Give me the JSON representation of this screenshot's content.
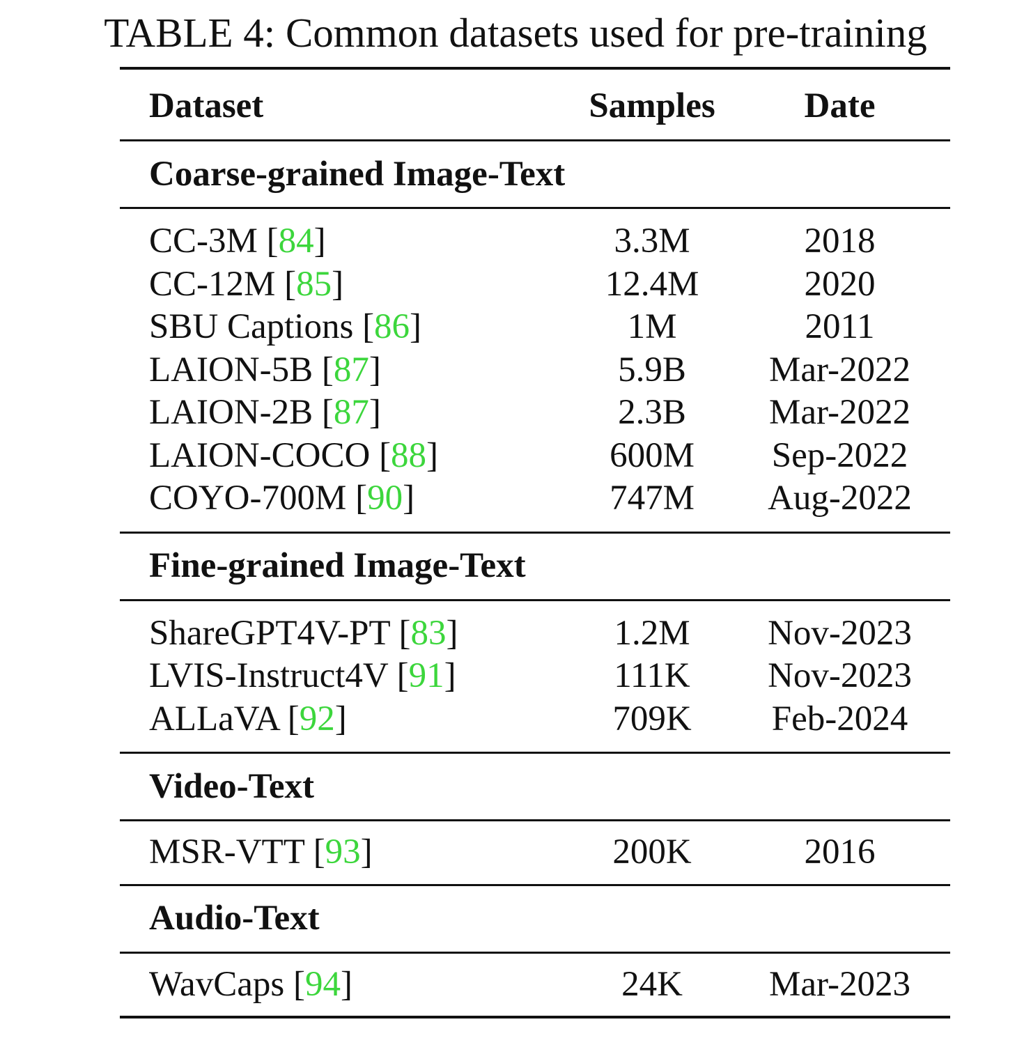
{
  "caption": "TABLE 4: Common datasets used for pre-training",
  "headers": {
    "dataset": "Dataset",
    "samples": "Samples",
    "date": "Date"
  },
  "colors": {
    "citation": "#3cd63c",
    "text": "#111111",
    "rule": "#111111"
  },
  "sections": [
    {
      "title": "Coarse-grained Image-Text",
      "rows": [
        {
          "name": "CC-3M",
          "ref": "84",
          "samples": "3.3M",
          "date": "2018"
        },
        {
          "name": "CC-12M",
          "ref": "85",
          "samples": "12.4M",
          "date": "2020"
        },
        {
          "name": "SBU Captions",
          "ref": "86",
          "samples": "1M",
          "date": "2011"
        },
        {
          "name": "LAION-5B",
          "ref": "87",
          "samples": "5.9B",
          "date": "Mar-2022"
        },
        {
          "name": "LAION-2B",
          "ref": "87",
          "samples": "2.3B",
          "date": "Mar-2022"
        },
        {
          "name": "LAION-COCO",
          "ref": "88",
          "samples": "600M",
          "date": "Sep-2022"
        },
        {
          "name": "COYO-700M",
          "ref": "90",
          "samples": "747M",
          "date": "Aug-2022"
        }
      ]
    },
    {
      "title": "Fine-grained Image-Text",
      "rows": [
        {
          "name": "ShareGPT4V-PT",
          "ref": "83",
          "samples": "1.2M",
          "date": "Nov-2023"
        },
        {
          "name": "LVIS-Instruct4V",
          "ref": "91",
          "samples": "111K",
          "date": "Nov-2023"
        },
        {
          "name": "ALLaVA",
          "ref": "92",
          "samples": "709K",
          "date": "Feb-2024"
        }
      ]
    },
    {
      "title": "Video-Text",
      "rows": [
        {
          "name": "MSR-VTT",
          "ref": "93",
          "samples": "200K",
          "date": "2016"
        }
      ]
    },
    {
      "title": "Audio-Text",
      "rows": [
        {
          "name": "WavCaps",
          "ref": "94",
          "samples": "24K",
          "date": "Mar-2023"
        }
      ]
    }
  ]
}
